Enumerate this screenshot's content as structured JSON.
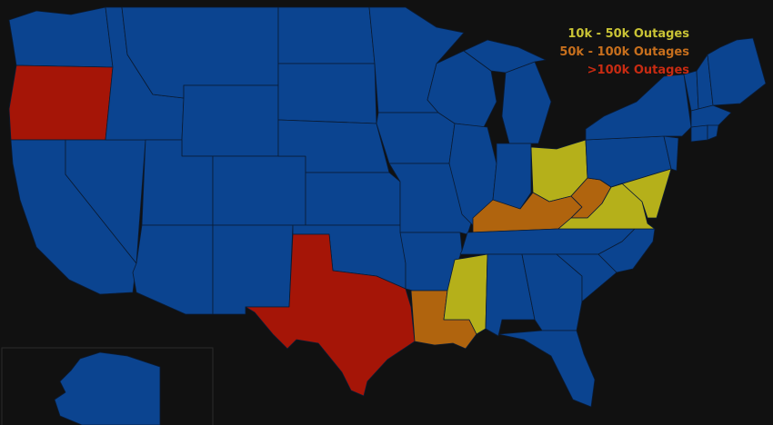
{
  "colors": {
    "background": "#111111",
    "none": "#0b4490",
    "tier1": "#b5b01a",
    "tier2": "#b0640e",
    "tier3": "#a51507"
  },
  "legend": [
    {
      "label": "10k - 50k Outages",
      "color": "#c9c335",
      "tier": "tier1"
    },
    {
      "label": "50k - 100k Outages",
      "color": "#c76f1d",
      "tier": "tier2"
    },
    {
      "label": ">100k Outages",
      "color": "#c82b12",
      "tier": "tier3"
    }
  ],
  "state_outage_tiers": {
    "Oregon": "tier3",
    "Texas": "tier3",
    "Louisiana": "tier2",
    "Kentucky": "tier2",
    "West Virginia": "tier2",
    "Ohio": "tier1",
    "Virginia": "tier1",
    "Mississippi": "tier1",
    "Maryland": "tier1"
  }
}
